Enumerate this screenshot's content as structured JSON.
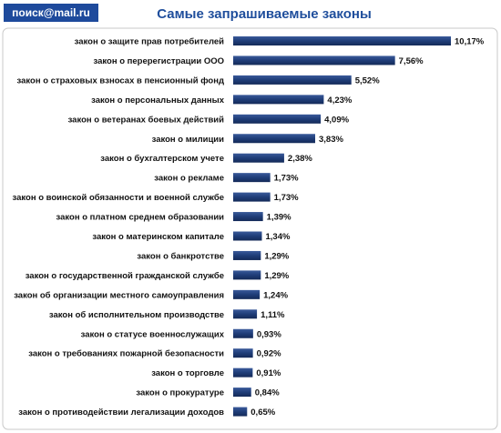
{
  "chart_data": {
    "type": "bar",
    "orientation": "horizontal",
    "logo": "поиск@mail.ru",
    "title": "Самые запрашиваемые законы",
    "color": "#1f3d78",
    "categories": [
      "закон о защите  прав потребителей",
      "закон о перерегистрации  ООО",
      "закон о страховых  взносах в пенсионный фонд",
      "закон о персональных  данных",
      "закон о ветеранах  боевых  действий",
      "закон о милиции",
      "закон о бухгалтерском  учете",
      "закон о рекламе",
      "закон о воинской обязанности и военной службе",
      "закон о платном  среднем  образовании",
      "закон о материнском  капитале",
      "закон о банкротстве",
      "закон о государственной  гражданской службе",
      "закон об организации  местного самоуправления",
      "закон об исполнительном  производстве",
      "закон о статусе  военнослужащих",
      "закон о требованиях  пожарной  безопасности",
      "закон о торговле",
      "закон о прокуратуре",
      "закон о противодействии  легализации  доходов"
    ],
    "values": [
      10.17,
      7.56,
      5.52,
      4.23,
      4.09,
      3.83,
      2.38,
      1.73,
      1.73,
      1.39,
      1.34,
      1.29,
      1.29,
      1.24,
      1.11,
      0.93,
      0.92,
      0.91,
      0.84,
      0.65
    ],
    "value_labels": [
      "10,17%",
      "7,56%",
      "5,52%",
      "4,23%",
      "4,09%",
      "3,83%",
      "2,38%",
      "1,73%",
      "1,73%",
      "1,39%",
      "1,34%",
      "1,29%",
      "1,29%",
      "1,24%",
      "1,11%",
      "0,93%",
      "0,92%",
      "0,91%",
      "0,84%",
      "0,65%"
    ]
  }
}
